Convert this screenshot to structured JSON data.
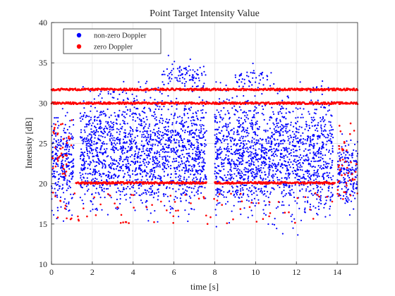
{
  "chart_data": {
    "type": "scatter",
    "title": "Point Target Intensity Value",
    "xlabel": "time [s]",
    "ylabel": "Intensity [dB]",
    "xlim": [
      0,
      15
    ],
    "ylim": [
      10,
      40
    ],
    "xticks": [
      0,
      2,
      4,
      6,
      8,
      10,
      12,
      14
    ],
    "yticks": [
      10,
      15,
      20,
      25,
      30,
      35,
      40
    ],
    "grid": true,
    "legend_position": "top-left",
    "series": [
      {
        "name": "non-zero Doppler",
        "color": "#0000ff",
        "clusters": [
          {
            "t": [
              0.0,
              1.1
            ],
            "y": [
              14,
              31
            ],
            "count": 260
          },
          {
            "t": [
              1.4,
              7.6
            ],
            "y": [
              14,
              34
            ],
            "count": 1700
          },
          {
            "t": [
              8.0,
              13.8
            ],
            "y": [
              13,
              34
            ],
            "count": 1600
          },
          {
            "t": [
              14.0,
              15.0
            ],
            "y": [
              15,
              28
            ],
            "count": 180
          },
          {
            "t": [
              5.4,
              7.6
            ],
            "y": [
              31,
              36
            ],
            "count": 90
          },
          {
            "t": [
              9.0,
              10.8
            ],
            "y": [
              31,
              35
            ],
            "count": 50
          }
        ]
      },
      {
        "name": "zero Doppler",
        "color": "#ff0000",
        "bands": [
          {
            "t": [
              0,
              15
            ],
            "y": 31.7
          },
          {
            "t": [
              0,
              15
            ],
            "y": 30.0
          },
          {
            "t": [
              1.2,
              7.6
            ],
            "y": 20.1
          },
          {
            "t": [
              8.0,
              13.9
            ],
            "y": 20.1
          }
        ],
        "clusters": [
          {
            "t": [
              0.0,
              1.0
            ],
            "y": [
              21,
              28
            ],
            "count": 40
          },
          {
            "t": [
              14.0,
              15.0
            ],
            "y": [
              18,
              28
            ],
            "count": 45
          },
          {
            "t": [
              1.2,
              13.9
            ],
            "y": [
              15,
              19
            ],
            "count": 70
          },
          {
            "t": [
              0.0,
              2.0
            ],
            "y": [
              15,
              19
            ],
            "count": 12
          }
        ]
      }
    ]
  }
}
